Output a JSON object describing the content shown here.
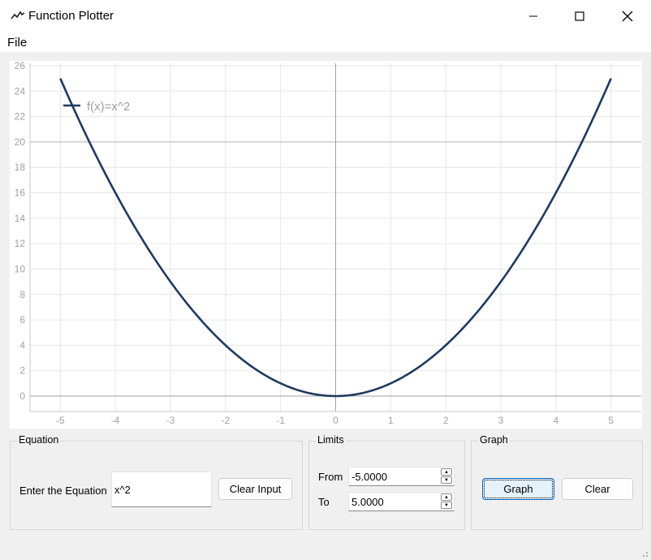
{
  "window": {
    "title": "Function Plotter",
    "app_icon": "line-chart-icon"
  },
  "menu": {
    "file": "File"
  },
  "controls": {
    "minimize_icon": "minimize-icon",
    "maximize_icon": "maximize-icon",
    "close_icon": "close-icon"
  },
  "equation": {
    "group_title": "Equation",
    "label": "Enter the Equation",
    "value": "x^2",
    "clear_input": "Clear Input"
  },
  "limits": {
    "group_title": "Limits",
    "from_label": "From",
    "from_value": "-5.0000",
    "to_label": "To",
    "to_value": "5.0000"
  },
  "graph": {
    "group_title": "Graph",
    "graph_button": "Graph",
    "clear_button": "Clear"
  },
  "colors": {
    "series": "#1f3a5f",
    "grid": "#e6e6e6",
    "axis": "#a0a0a0",
    "label": "#a0a0a0"
  },
  "chart_data": {
    "type": "line",
    "function": "x^2",
    "x_range": [
      -5,
      5
    ],
    "ylim": [
      -1,
      26
    ],
    "x_ticks": [
      -5,
      -4,
      -3,
      -2,
      -1,
      0,
      1,
      2,
      3,
      4,
      5
    ],
    "y_ticks": [
      0,
      2,
      4,
      6,
      8,
      10,
      12,
      14,
      16,
      18,
      20,
      22,
      24,
      26
    ],
    "legend": {
      "position": "top-left"
    },
    "series": [
      {
        "name": "f(x)=x^2",
        "x": [
          -5,
          -4.5,
          -4,
          -3.5,
          -3,
          -2.5,
          -2,
          -1.5,
          -1,
          -0.5,
          0,
          0.5,
          1,
          1.5,
          2,
          2.5,
          3,
          3.5,
          4,
          4.5,
          5
        ],
        "y": [
          25,
          20.25,
          16,
          12.25,
          9,
          6.25,
          4,
          2.25,
          1,
          0.25,
          0,
          0.25,
          1,
          2.25,
          4,
          6.25,
          9,
          12.25,
          16,
          20.25,
          25
        ]
      }
    ]
  }
}
